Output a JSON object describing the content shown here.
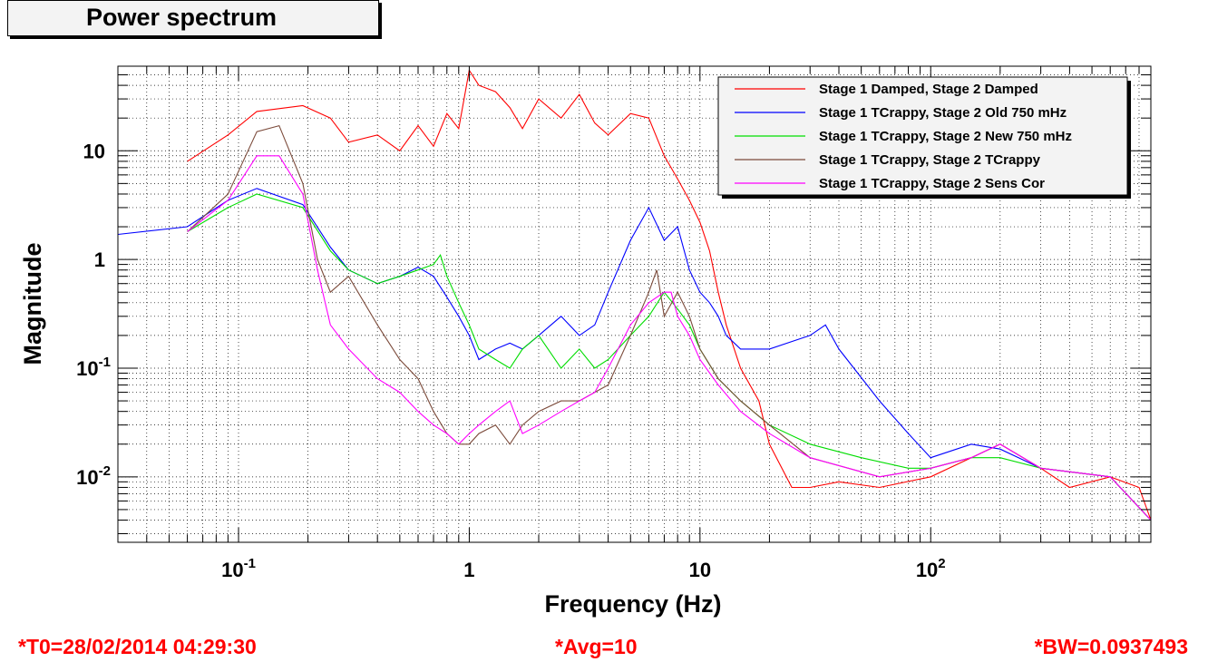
{
  "chart_data": {
    "type": "line",
    "title": "Power spectrum",
    "xlabel": "Frequency (Hz)",
    "ylabel": "Magnitude",
    "xscale": "log",
    "yscale": "log",
    "xlim": [
      0.03,
      900
    ],
    "ylim": [
      0.0025,
      60
    ],
    "grid": true,
    "legend_position": "top-right",
    "x_ticks": [
      {
        "value": 0.1,
        "mantissa": "10",
        "exp": "-1"
      },
      {
        "value": 1,
        "mantissa": "1",
        "exp": ""
      },
      {
        "value": 10,
        "mantissa": "10",
        "exp": ""
      },
      {
        "value": 100,
        "mantissa": "10",
        "exp": "2"
      }
    ],
    "y_ticks": [
      {
        "value": 0.01,
        "mantissa": "10",
        "exp": "-2"
      },
      {
        "value": 0.1,
        "mantissa": "10",
        "exp": "-1"
      },
      {
        "value": 1,
        "mantissa": "1",
        "exp": ""
      },
      {
        "value": 10,
        "mantissa": "10",
        "exp": ""
      }
    ],
    "series": [
      {
        "name": "Stage 1 Damped, Stage 2 Damped",
        "color": "#ff0000",
        "x": [
          0.06,
          0.09,
          0.12,
          0.19,
          0.25,
          0.3,
          0.4,
          0.5,
          0.6,
          0.7,
          0.8,
          0.9,
          1.0,
          1.1,
          1.3,
          1.5,
          1.7,
          2.0,
          2.5,
          3.0,
          3.5,
          4.0,
          5.0,
          6.0,
          7.0,
          8.0,
          9.0,
          10.0,
          11.0,
          12.0,
          13.0,
          15.0,
          18.0,
          20.0,
          25.0,
          30.0,
          40.0,
          60.0,
          100.0,
          150.0,
          200.0,
          300.0,
          400.0,
          600.0,
          800.0,
          900.0
        ],
        "y": [
          8,
          14,
          23,
          26,
          20,
          12,
          14,
          10,
          17,
          11,
          22,
          16,
          55,
          40,
          35,
          25,
          16,
          30,
          20,
          33,
          18,
          14,
          22,
          20,
          9,
          5.5,
          3.5,
          2.2,
          1.2,
          0.5,
          0.25,
          0.1,
          0.05,
          0.02,
          0.008,
          0.008,
          0.009,
          0.008,
          0.01,
          0.015,
          0.02,
          0.012,
          0.008,
          0.01,
          0.008,
          0.004
        ]
      },
      {
        "name": "Stage 1 TCrappy, Stage 2 Old 750 mHz",
        "color": "#0000ff",
        "x": [
          0.03,
          0.06,
          0.09,
          0.12,
          0.19,
          0.25,
          0.3,
          0.4,
          0.5,
          0.6,
          0.7,
          0.8,
          0.9,
          1.0,
          1.1,
          1.3,
          1.5,
          1.7,
          2.0,
          2.5,
          3.0,
          3.5,
          4.0,
          5.0,
          6.0,
          7.0,
          8.0,
          9.0,
          10.0,
          11.0,
          12.0,
          13.0,
          15.0,
          20.0,
          30.0,
          35.0,
          40.0,
          60.0,
          80.0,
          100.0,
          150.0,
          200.0,
          300.0,
          600.0,
          900.0
        ],
        "y": [
          1.7,
          2.0,
          3.5,
          4.5,
          3.2,
          1.3,
          0.8,
          0.6,
          0.7,
          0.85,
          0.7,
          0.45,
          0.3,
          0.2,
          0.12,
          0.15,
          0.17,
          0.15,
          0.2,
          0.3,
          0.2,
          0.25,
          0.5,
          1.5,
          3.0,
          1.5,
          2.0,
          0.8,
          0.5,
          0.4,
          0.3,
          0.2,
          0.15,
          0.15,
          0.2,
          0.25,
          0.15,
          0.05,
          0.025,
          0.015,
          0.02,
          0.018,
          0.012,
          0.01,
          0.004
        ]
      },
      {
        "name": "Stage 1 TCrappy, Stage 2 New 750 mHz",
        "color": "#00dd00",
        "x": [
          0.06,
          0.09,
          0.12,
          0.19,
          0.25,
          0.3,
          0.4,
          0.5,
          0.6,
          0.7,
          0.75,
          0.8,
          0.9,
          1.0,
          1.1,
          1.3,
          1.5,
          1.7,
          2.0,
          2.5,
          3.0,
          3.5,
          4.0,
          5.0,
          6.0,
          7.0,
          8.0,
          9.0,
          10.0,
          12.0,
          15.0,
          20.0,
          30.0,
          50.0,
          80.0,
          100.0,
          150.0,
          200.0,
          300.0,
          600.0,
          900.0
        ],
        "y": [
          1.8,
          3.0,
          4.0,
          3.0,
          1.2,
          0.8,
          0.6,
          0.7,
          0.8,
          0.9,
          1.1,
          0.7,
          0.4,
          0.25,
          0.15,
          0.12,
          0.1,
          0.15,
          0.2,
          0.1,
          0.15,
          0.1,
          0.12,
          0.2,
          0.3,
          0.5,
          0.35,
          0.25,
          0.15,
          0.08,
          0.05,
          0.03,
          0.02,
          0.015,
          0.012,
          0.012,
          0.015,
          0.015,
          0.012,
          0.01,
          0.004
        ]
      },
      {
        "name": "Stage 1 TCrappy, Stage 2 TCrappy",
        "color": "#7b4a3a",
        "x": [
          0.06,
          0.09,
          0.12,
          0.15,
          0.19,
          0.22,
          0.25,
          0.3,
          0.4,
          0.5,
          0.6,
          0.7,
          0.8,
          0.9,
          1.0,
          1.1,
          1.3,
          1.5,
          1.7,
          2.0,
          2.5,
          3.0,
          3.5,
          4.0,
          5.0,
          6.0,
          6.5,
          7.0,
          8.0,
          9.0,
          10.0,
          12.0,
          15.0,
          20.0,
          30.0,
          60.0,
          100.0,
          150.0,
          200.0,
          300.0,
          600.0,
          900.0
        ],
        "y": [
          1.8,
          4.0,
          15.0,
          17.0,
          5.0,
          1.0,
          0.5,
          0.7,
          0.25,
          0.12,
          0.08,
          0.04,
          0.025,
          0.02,
          0.02,
          0.025,
          0.03,
          0.02,
          0.03,
          0.04,
          0.05,
          0.05,
          0.06,
          0.07,
          0.2,
          0.5,
          0.8,
          0.3,
          0.5,
          0.3,
          0.15,
          0.08,
          0.05,
          0.03,
          0.015,
          0.01,
          0.012,
          0.015,
          0.02,
          0.012,
          0.01,
          0.004
        ]
      },
      {
        "name": "Stage 1 TCrappy, Stage 2 Sens Cor",
        "color": "#ff00ff",
        "x": [
          0.06,
          0.09,
          0.12,
          0.15,
          0.19,
          0.22,
          0.25,
          0.3,
          0.4,
          0.5,
          0.6,
          0.7,
          0.8,
          0.9,
          1.0,
          1.1,
          1.3,
          1.5,
          1.7,
          2.0,
          2.5,
          3.0,
          3.5,
          4.0,
          5.0,
          6.0,
          7.0,
          7.5,
          8.0,
          9.0,
          10.0,
          12.0,
          15.0,
          20.0,
          30.0,
          60.0,
          100.0,
          150.0,
          200.0,
          300.0,
          600.0,
          900.0
        ],
        "y": [
          1.8,
          3.5,
          9.0,
          9.0,
          4.0,
          0.8,
          0.25,
          0.15,
          0.08,
          0.06,
          0.04,
          0.03,
          0.025,
          0.02,
          0.025,
          0.03,
          0.04,
          0.05,
          0.025,
          0.03,
          0.04,
          0.05,
          0.06,
          0.1,
          0.25,
          0.4,
          0.5,
          0.5,
          0.3,
          0.2,
          0.12,
          0.07,
          0.04,
          0.025,
          0.015,
          0.01,
          0.012,
          0.015,
          0.02,
          0.012,
          0.01,
          0.004
        ]
      }
    ]
  },
  "footer": {
    "t0": "*T0=28/02/2014 04:29:30",
    "avg": "*Avg=10",
    "bw": "*BW=0.0937493"
  }
}
